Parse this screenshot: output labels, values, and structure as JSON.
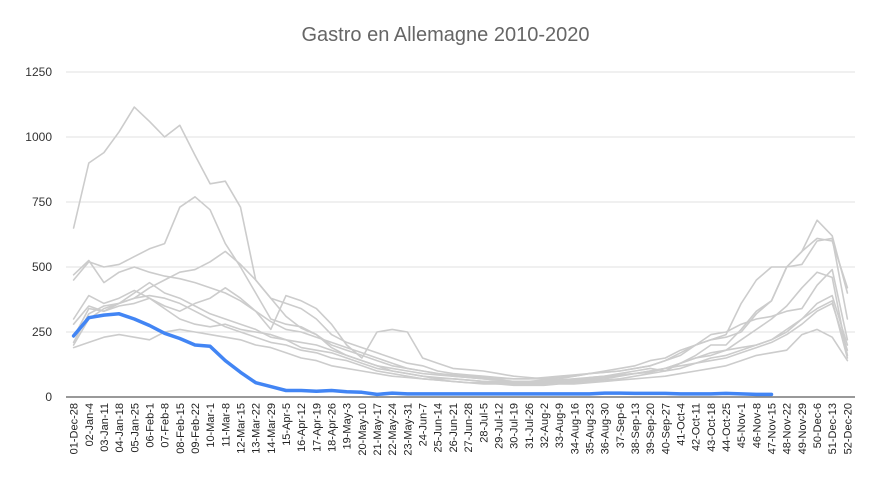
{
  "chart_data": {
    "type": "line",
    "title": "Gastro en Allemagne 2010-2020",
    "xlabel": "",
    "ylabel": "",
    "ylim": [
      0,
      1250
    ],
    "yticks": [
      0,
      250,
      500,
      750,
      1000,
      1250
    ],
    "grid": "horizontal",
    "legend": "none",
    "colors": {
      "highlight": "#4285f4",
      "background": "#cccccc",
      "grid": "#e0e0e0",
      "axis": "#333333"
    },
    "categories": [
      "01-Dec-28",
      "02-Jan-4",
      "03-Jan-11",
      "04-Jan-18",
      "05-Jan-25",
      "06-Feb-1",
      "07-Feb-8",
      "08-Feb-15",
      "09-Feb-22",
      "10-Mar-1",
      "11-Mar-8",
      "12-Mar-15",
      "13-Mar-22",
      "14-Mar-29",
      "15-Apr-5",
      "16-Apr-12",
      "17-Apr-19",
      "18-Apr-26",
      "19-May-3",
      "20-May-10",
      "21-May-17",
      "22-May-24",
      "23-May-31",
      "24-Jun-7",
      "25-Jun-14",
      "26-Jun-21",
      "27-Jun-28",
      "28-Jul-5",
      "29-Jul-12",
      "30-Jul-19",
      "31-Jul-26",
      "32-Aug-2",
      "33-Aug-9",
      "34-Aug-16",
      "35-Aug-23",
      "36-Aug-30",
      "37-Sep-6",
      "38-Sep-13",
      "39-Sep-20",
      "40-Sep-27",
      "41-Oct-4",
      "42-Oct-11",
      "43-Oct-18",
      "44-Oct-25",
      "45-Nov-1",
      "46-Nov-8",
      "47-Nov-15",
      "48-Nov-22",
      "49-Nov-29",
      "50-Dec-6",
      "51-Dec-13",
      "52-Dec-20"
    ],
    "series": [
      {
        "highlight": true,
        "values": [
          235,
          305,
          315,
          320,
          300,
          275,
          245,
          225,
          200,
          195,
          140,
          95,
          55,
          40,
          25,
          25,
          22,
          25,
          20,
          18,
          10,
          15,
          12,
          12,
          12,
          12,
          12,
          12,
          12,
          12,
          12,
          12,
          12,
          12,
          12,
          15,
          15,
          14,
          14,
          14,
          12,
          12,
          12,
          14,
          12,
          10,
          10,
          null,
          null,
          null,
          null,
          null
        ]
      },
      {
        "values": [
          650,
          900,
          940,
          1020,
          1115,
          1060,
          1000,
          1045,
          930,
          820,
          830,
          730,
          450,
          380,
          310,
          265,
          240,
          200,
          180,
          160,
          140,
          120,
          110,
          100,
          90,
          80,
          75,
          70,
          65,
          60,
          60,
          60,
          65,
          70,
          75,
          80,
          85,
          90,
          95,
          110,
          130,
          150,
          170,
          180,
          220,
          260,
          300,
          350,
          420,
          480,
          460,
          160
        ]
      },
      {
        "values": [
          450,
          520,
          500,
          510,
          540,
          570,
          590,
          730,
          770,
          720,
          590,
          500,
          400,
          300,
          280,
          270,
          240,
          190,
          160,
          140,
          120,
          110,
          100,
          90,
          85,
          80,
          75,
          70,
          65,
          60,
          60,
          65,
          70,
          80,
          90,
          95,
          100,
          110,
          120,
          140,
          160,
          200,
          220,
          240,
          360,
          450,
          500,
          500,
          560,
          680,
          620,
          400
        ]
      },
      {
        "values": [
          470,
          525,
          440,
          480,
          500,
          480,
          465,
          455,
          440,
          420,
          400,
          370,
          330,
          290,
          260,
          250,
          230,
          210,
          190,
          170,
          150,
          130,
          110,
          100,
          90,
          85,
          80,
          75,
          70,
          70,
          70,
          75,
          80,
          85,
          90,
          95,
          100,
          110,
          120,
          140,
          170,
          200,
          220,
          230,
          250,
          320,
          370,
          500,
          560,
          610,
          600,
          420
        ]
      },
      {
        "values": [
          300,
          390,
          360,
          380,
          410,
          380,
          350,
          330,
          360,
          380,
          420,
          380,
          330,
          260,
          390,
          370,
          340,
          280,
          200,
          150,
          250,
          260,
          250,
          150,
          130,
          110,
          105,
          100,
          90,
          80,
          75,
          70,
          60,
          60,
          75,
          80,
          90,
          100,
          110,
          100,
          130,
          160,
          200,
          200,
          260,
          330,
          370,
          500,
          510,
          600,
          610,
          300
        ]
      },
      {
        "values": [
          280,
          350,
          330,
          360,
          380,
          420,
          450,
          480,
          490,
          520,
          560,
          510,
          450,
          380,
          360,
          340,
          300,
          240,
          210,
          190,
          170,
          150,
          130,
          120,
          100,
          90,
          85,
          80,
          75,
          70,
          70,
          70,
          75,
          80,
          90,
          100,
          110,
          120,
          140,
          150,
          180,
          200,
          240,
          250,
          280,
          300,
          310,
          330,
          340,
          430,
          490,
          220
        ]
      },
      {
        "values": [
          230,
          340,
          330,
          350,
          360,
          380,
          340,
          300,
          280,
          270,
          280,
          260,
          250,
          240,
          220,
          210,
          200,
          180,
          160,
          140,
          120,
          100,
          90,
          80,
          70,
          70,
          65,
          60,
          55,
          55,
          55,
          55,
          60,
          60,
          65,
          70,
          80,
          90,
          100,
          110,
          130,
          150,
          160,
          180,
          190,
          200,
          220,
          250,
          300,
          360,
          390,
          200
        ]
      },
      {
        "values": [
          210,
          320,
          350,
          360,
          400,
          440,
          400,
          380,
          350,
          320,
          300,
          280,
          260,
          230,
          220,
          190,
          180,
          170,
          150,
          130,
          110,
          100,
          90,
          80,
          75,
          70,
          65,
          60,
          60,
          55,
          55,
          55,
          60,
          65,
          70,
          75,
          85,
          90,
          100,
          110,
          120,
          130,
          140,
          150,
          170,
          190,
          210,
          240,
          280,
          330,
          360,
          180
        ]
      },
      {
        "values": [
          200,
          300,
          340,
          360,
          380,
          390,
          380,
          360,
          330,
          300,
          270,
          250,
          230,
          210,
          200,
          180,
          170,
          150,
          140,
          120,
          100,
          90,
          80,
          70,
          65,
          60,
          55,
          55,
          50,
          50,
          50,
          50,
          55,
          55,
          60,
          65,
          70,
          80,
          90,
          100,
          110,
          130,
          150,
          160,
          180,
          200,
          220,
          260,
          300,
          340,
          370,
          150
        ]
      },
      {
        "values": [
          190,
          210,
          230,
          240,
          230,
          220,
          250,
          260,
          250,
          240,
          230,
          220,
          200,
          190,
          170,
          150,
          140,
          120,
          110,
          100,
          90,
          80,
          75,
          70,
          65,
          60,
          55,
          50,
          50,
          45,
          45,
          45,
          50,
          50,
          55,
          60,
          65,
          70,
          75,
          80,
          90,
          100,
          110,
          120,
          140,
          160,
          170,
          180,
          240,
          260,
          230,
          140
        ]
      }
    ]
  }
}
